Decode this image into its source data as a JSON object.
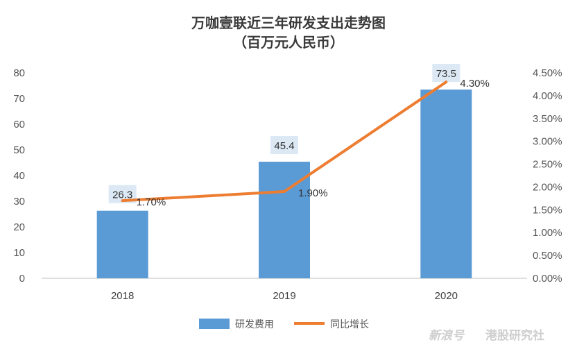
{
  "chart_data": {
    "type": "bar+line",
    "title_line1": "万咖壹联近三年研发支出走势图",
    "title_line2": "（百万元人民币）",
    "categories": [
      "2018",
      "2019",
      "2020"
    ],
    "bar_series": {
      "name": "研发费用",
      "values": [
        26.3,
        45.4,
        73.5
      ],
      "labels": [
        "26.3",
        "45.4",
        "73.5"
      ],
      "color": "#5b9bd5",
      "label_bg": "#dce9f5"
    },
    "line_series": {
      "name": "同比增长",
      "values": [
        1.7,
        1.9,
        4.3
      ],
      "labels": [
        "1.70%",
        "1.90%",
        "4.30%"
      ],
      "color": "#ed7d31"
    },
    "y_left": {
      "min": 0,
      "max": 80,
      "ticks": [
        0,
        10,
        20,
        30,
        40,
        50,
        60,
        70,
        80
      ],
      "tick_labels": [
        "0",
        "10",
        "20",
        "30",
        "40",
        "50",
        "60",
        "70",
        "80"
      ]
    },
    "y_right": {
      "min": 0,
      "max": 4.5,
      "ticks": [
        0,
        0.5,
        1,
        1.5,
        2,
        2.5,
        3,
        3.5,
        4,
        4.5
      ],
      "tick_labels": [
        "0.00%",
        "0.50%",
        "1.00%",
        "1.50%",
        "2.00%",
        "2.50%",
        "3.00%",
        "3.50%",
        "4.00%",
        "4.50%"
      ]
    },
    "legend_position": "bottom",
    "grid": false
  },
  "watermark": {
    "brand": "港股研究社",
    "logo_text": "新浪号"
  }
}
